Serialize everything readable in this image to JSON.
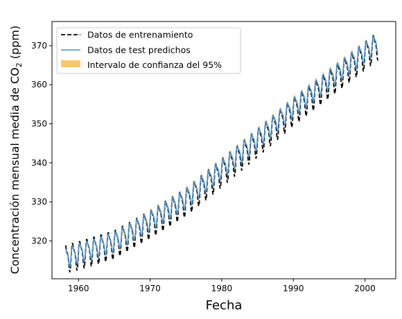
{
  "chart_data": {
    "type": "line",
    "title": "",
    "xlabel": "Fecha",
    "ylabel_main": "Concentración mensual media de CO",
    "ylabel_sub": "2",
    "ylabel_tail": " (ppm)",
    "xlim": [
      1956.3,
      2004.3
    ],
    "ylim": [
      310.3,
      376.2
    ],
    "xticks": [
      1960,
      1970,
      1980,
      1990,
      2000
    ],
    "yticks": [
      320,
      330,
      340,
      350,
      360,
      370
    ],
    "x_range": [
      1958.2,
      2001.8
    ],
    "grid": false,
    "legend_position": "top-left",
    "series": [
      {
        "name": "Datos de entrenamiento",
        "style": "dashed",
        "color": "#000000",
        "trend_points": [
          [
            1958.2,
            315.8
          ],
          [
            1960,
            316.6
          ],
          [
            1965,
            319.4
          ],
          [
            1970,
            324.6
          ],
          [
            1975,
            330.3
          ],
          [
            1980,
            337.8
          ],
          [
            1985,
            345.5
          ],
          [
            1990,
            353.5
          ],
          [
            1995,
            360.6
          ],
          [
            2000,
            367.8
          ],
          [
            2001.8,
            370.3
          ]
        ],
        "seasonal_amplitude": 3.2
      },
      {
        "name": "Datos de test predichos",
        "style": "solid",
        "color": "#4a8fc7",
        "trend_points": [
          [
            1958.2,
            315.8
          ],
          [
            1960,
            317.0
          ],
          [
            1965,
            319.9
          ],
          [
            1970,
            325.3
          ],
          [
            1975,
            331.0
          ],
          [
            1980,
            338.6
          ],
          [
            1985,
            346.3
          ],
          [
            1990,
            354.4
          ],
          [
            1995,
            361.6
          ],
          [
            2000,
            368.6
          ],
          [
            2001.8,
            371.0
          ]
        ],
        "seasonal_amplitude": 2.3
      },
      {
        "name": "Intervalo de confianza del 95%",
        "style": "band",
        "color": "#f5b945",
        "half_width": 0.6
      }
    ]
  }
}
